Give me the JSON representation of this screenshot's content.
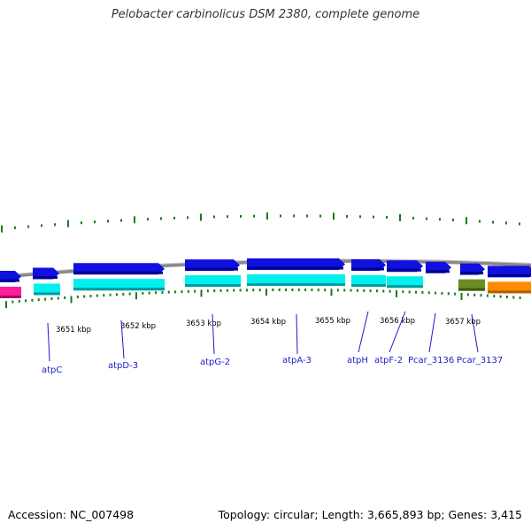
{
  "title": "Pelobacter carbinolicus DSM 2380, complete genome",
  "footer": {
    "accession": "Accession: NC_007498",
    "topology": "Topology: circular; Length: 3,665,893 bp; Genes: 3,415"
  },
  "scale_labels": [
    "3651 kbp",
    "3652 kbp",
    "3653 kbp",
    "3654 kbp",
    "3655 kbp",
    "3656 kbp",
    "3657 kbp"
  ],
  "gene_labels": [
    "atpC",
    "atpD-3",
    "atpG-2",
    "atpA-3",
    "atpH",
    "atpF-2",
    "Pcar_3136",
    "Pcar_3137"
  ],
  "colors": {
    "backbone": "#8a8a8a",
    "cds_forward": "#1010e0",
    "cds_forward_dark": "#000090",
    "gene_cyan": "#00f0f0",
    "gene_cyan_dark": "#009a9a",
    "gene_magenta": "#ff1f9a",
    "gene_olive": "#6b8e23",
    "gene_orange": "#ff8c00",
    "gc_skew": "#1a7a1a",
    "tick": "#1a7a1a",
    "label": "#1c1cc8"
  }
}
